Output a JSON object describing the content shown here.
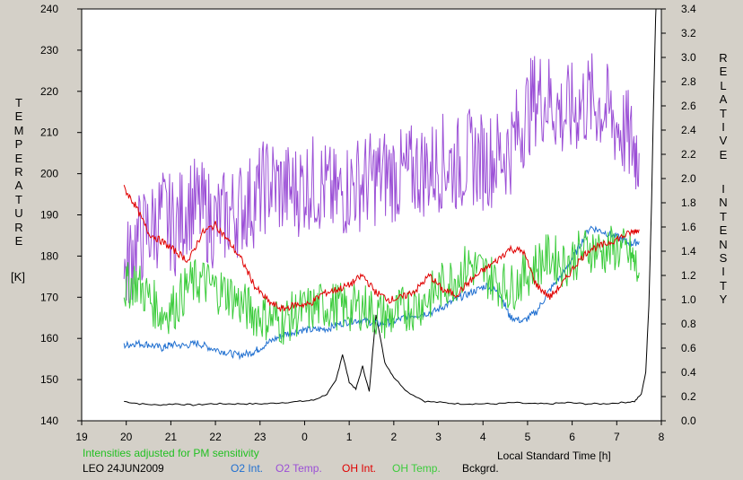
{
  "chart_data": {
    "type": "line",
    "left_axis": {
      "label_letters": [
        "T",
        "E",
        "M",
        "P",
        "E",
        "R",
        "A",
        "T",
        "U",
        "R",
        "E"
      ],
      "unit": "[K]",
      "ticks": [
        140,
        150,
        160,
        170,
        180,
        190,
        200,
        210,
        220,
        230,
        240
      ],
      "range": [
        140,
        240
      ]
    },
    "right_axis": {
      "label_word1": [
        "R",
        "E",
        "L",
        "A",
        "T",
        "I",
        "V",
        "E"
      ],
      "label_word2": [
        "I",
        "N",
        "T",
        "E",
        "N",
        "S",
        "I",
        "T",
        "Y"
      ],
      "ticks": [
        "0.0",
        "0.2",
        "0.4",
        "0.6",
        "0.8",
        "1.0",
        "1.2",
        "1.4",
        "1.6",
        "1.8",
        "2.0",
        "2.2",
        "2.4",
        "2.6",
        "2.8",
        "3.0",
        "3.2",
        "3.4"
      ],
      "range": [
        0,
        3.4
      ]
    },
    "x_axis": {
      "label": "Local Standard Time [h]",
      "ticks": [
        "19",
        "20",
        "21",
        "22",
        "23",
        "0",
        "1",
        "2",
        "3",
        "4",
        "5",
        "6",
        "7",
        "8"
      ],
      "range": [
        19,
        32
      ]
    },
    "note": "Intensities adjusted for PM sensitivity",
    "station": "LEO 24JUN2009",
    "colors": {
      "o2_int": "#1f6fd0",
      "o2_temp": "#9b4fd6",
      "oh_int": "#e00000",
      "oh_temp": "#3ccc3c",
      "bckgrd": "#000000",
      "note": "#22c022"
    },
    "series": [
      {
        "name": "O2 Int.",
        "axis": "right",
        "x": [
          19.95,
          20.2,
          20.5,
          20.8,
          21.0,
          21.3,
          21.6,
          21.9,
          22.2,
          22.5,
          22.8,
          23.0,
          23.3,
          23.6,
          23.9,
          24.2,
          24.5,
          24.8,
          25.1,
          25.4,
          25.7,
          26.0,
          26.3,
          26.6,
          26.9,
          27.2,
          27.5,
          27.8,
          28.1,
          28.4,
          28.6,
          28.9,
          29.2,
          29.5,
          29.8,
          30.1,
          30.4,
          30.7,
          31.0,
          31.3,
          31.5
        ],
        "values": [
          0.62,
          0.64,
          0.63,
          0.6,
          0.63,
          0.62,
          0.64,
          0.6,
          0.57,
          0.54,
          0.56,
          0.6,
          0.67,
          0.72,
          0.75,
          0.75,
          0.76,
          0.8,
          0.83,
          0.82,
          0.8,
          0.82,
          0.86,
          0.88,
          0.9,
          0.96,
          1.02,
          1.07,
          1.12,
          1.04,
          0.86,
          0.82,
          0.9,
          1.08,
          1.22,
          1.4,
          1.6,
          1.56,
          1.52,
          1.46,
          1.48
        ]
      },
      {
        "name": "O2 Temp.",
        "axis": "left",
        "x": [
          19.95,
          20.2,
          20.5,
          20.8,
          21.1,
          21.4,
          21.7,
          22.0,
          22.3,
          22.6,
          22.9,
          23.2,
          23.5,
          23.8,
          24.1,
          24.4,
          24.7,
          25.0,
          25.3,
          25.6,
          25.9,
          26.2,
          26.5,
          26.8,
          27.1,
          27.4,
          27.7,
          28.0,
          28.3,
          28.6,
          28.9,
          29.2,
          29.5,
          29.8,
          30.1,
          30.4,
          30.7,
          31.0,
          31.3,
          31.5
        ],
        "values": [
          175,
          183,
          186,
          190,
          187,
          193,
          191,
          188,
          190,
          192,
          194,
          198,
          196,
          196,
          198,
          197,
          194,
          197,
          198,
          199,
          200,
          199,
          201,
          201,
          203,
          202,
          204,
          203,
          204,
          206,
          213,
          219,
          218,
          214,
          216,
          218,
          216,
          212,
          208,
          205
        ]
      },
      {
        "name": "OH Int.",
        "axis": "right",
        "x": [
          19.95,
          20.2,
          20.5,
          20.8,
          21.1,
          21.4,
          21.7,
          22.0,
          22.3,
          22.6,
          22.9,
          23.2,
          23.5,
          23.8,
          24.1,
          24.4,
          24.7,
          25.0,
          25.3,
          25.6,
          25.9,
          26.2,
          26.5,
          26.8,
          27.1,
          27.4,
          27.7,
          28.0,
          28.3,
          28.6,
          28.9,
          29.2,
          29.5,
          29.8,
          30.1,
          30.4,
          30.7,
          31.0,
          31.3,
          31.5
        ],
        "values": [
          1.92,
          1.78,
          1.55,
          1.48,
          1.4,
          1.32,
          1.55,
          1.62,
          1.48,
          1.32,
          1.1,
          0.98,
          0.92,
          0.96,
          0.96,
          1.05,
          1.08,
          1.12,
          1.2,
          1.06,
          1.0,
          1.02,
          1.08,
          1.2,
          1.08,
          1.04,
          1.15,
          1.24,
          1.32,
          1.42,
          1.4,
          1.12,
          1.02,
          1.14,
          1.3,
          1.42,
          1.45,
          1.5,
          1.55,
          1.58
        ]
      },
      {
        "name": "OH Temp.",
        "axis": "left",
        "x": [
          19.95,
          20.2,
          20.5,
          20.8,
          21.1,
          21.4,
          21.7,
          22.0,
          22.3,
          22.6,
          22.9,
          23.2,
          23.5,
          23.8,
          24.1,
          24.4,
          24.7,
          25.0,
          25.3,
          25.6,
          25.9,
          26.2,
          26.5,
          26.8,
          27.1,
          27.4,
          27.7,
          28.0,
          28.3,
          28.6,
          28.9,
          29.2,
          29.5,
          29.8,
          30.1,
          30.4,
          30.7,
          31.0,
          31.3,
          31.5
        ],
        "values": [
          172,
          174,
          170,
          166,
          168,
          173,
          174,
          172,
          171,
          168,
          166,
          165,
          164,
          166,
          167,
          168,
          168,
          167,
          168,
          166,
          165,
          167,
          168,
          170,
          173,
          175,
          178,
          176,
          174,
          172,
          175,
          178,
          180,
          178,
          180,
          182,
          181,
          182,
          180,
          176
        ]
      },
      {
        "name": "Bckgrd.",
        "axis": "right",
        "x": [
          19.95,
          20.3,
          20.7,
          21.1,
          21.5,
          21.9,
          22.3,
          22.7,
          23.1,
          23.5,
          23.9,
          24.2,
          24.5,
          24.7,
          24.85,
          25.0,
          25.15,
          25.3,
          25.45,
          25.6,
          25.8,
          26.0,
          26.3,
          26.7,
          27.1,
          27.5,
          27.9,
          28.3,
          28.7,
          29.1,
          29.5,
          29.9,
          30.3,
          30.7,
          31.1,
          31.4,
          31.55,
          31.65,
          31.72,
          31.78,
          31.83,
          31.88
        ],
        "values": [
          0.16,
          0.14,
          0.13,
          0.14,
          0.13,
          0.14,
          0.14,
          0.14,
          0.14,
          0.15,
          0.16,
          0.17,
          0.22,
          0.33,
          0.55,
          0.32,
          0.26,
          0.45,
          0.24,
          0.88,
          0.48,
          0.36,
          0.24,
          0.16,
          0.15,
          0.14,
          0.14,
          0.14,
          0.15,
          0.14,
          0.14,
          0.15,
          0.14,
          0.14,
          0.15,
          0.16,
          0.22,
          0.4,
          0.95,
          1.8,
          2.7,
          3.45
        ]
      }
    ]
  }
}
